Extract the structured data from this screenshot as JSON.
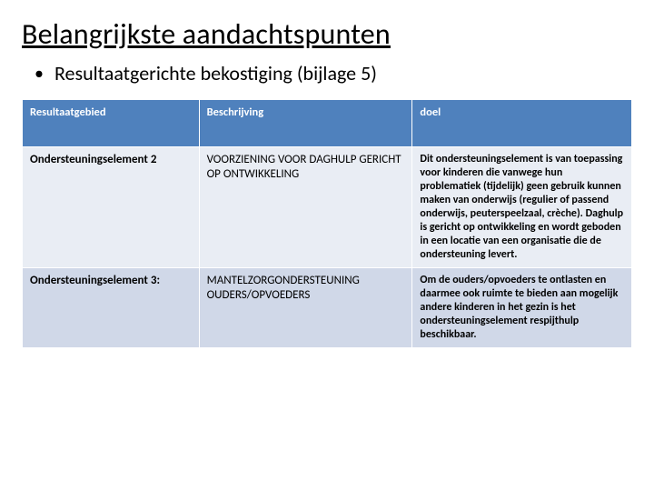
{
  "title": "Belangrijkste aandachtspunten",
  "bullet": "Resultaatgerichte bekostiging (bijlage 5)",
  "table": {
    "header_bg": "#4f81bd",
    "header_fg": "#ffffff",
    "row_bg_a": "#e9edf4",
    "row_bg_b": "#d0d8e8",
    "columns": [
      "Resultaatgebied",
      "Beschrijving",
      "doel"
    ],
    "rows": [
      {
        "label": "Ondersteuningselement 2",
        "desc": "VOORZIENING VOOR DAGHULP GERICHT OP ONTWIKKELING",
        "goal": "Dit ondersteuningselement is van toepassing voor kinderen die vanwege hun problematiek (tijdelijk) geen gebruik kunnen maken van onderwijs (regulier of passend onderwijs, peuterspeelzaal, crèche). Daghulp is gericht op ontwikkeling en wordt geboden in een locatie van een organisatie die de ondersteuning levert.",
        "goal_bold": true
      },
      {
        "label": "Ondersteuningselement 3:",
        "desc": "MANTELZORGONDERSTEUNING OUDERS/OPVOEDERS",
        "goal": "Om de ouders/opvoeders te ontlasten en daarmee ook ruimte te bieden aan mogelijk andere kinderen in het gezin is het ondersteuningselement respijthulp beschikbaar.",
        "goal_bold": true
      }
    ]
  }
}
